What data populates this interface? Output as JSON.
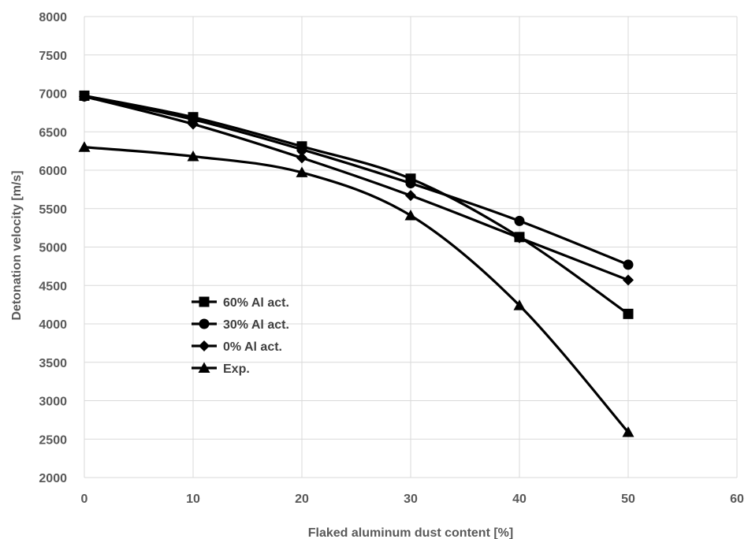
{
  "chart_data": {
    "type": "line",
    "title": "",
    "xlabel": "Flaked aluminum dust content [%]",
    "ylabel": "Detonation velocity [m/s]",
    "xlim": [
      0,
      60
    ],
    "ylim": [
      2000,
      8000
    ],
    "xticks": [
      0,
      10,
      20,
      30,
      40,
      50,
      60
    ],
    "yticks": [
      2000,
      2500,
      3000,
      3500,
      4000,
      4500,
      5000,
      5500,
      6000,
      6500,
      7000,
      7500,
      8000
    ],
    "grid": true,
    "smooth": true,
    "legend_position": "left-middle",
    "series": [
      {
        "name": "60% Al act.",
        "marker": "square",
        "color": "#000000",
        "x": [
          0,
          10,
          20,
          30,
          40,
          50
        ],
        "y": [
          6970,
          6690,
          6310,
          5890,
          5130,
          4130
        ]
      },
      {
        "name": "30% Al act.",
        "marker": "circle",
        "color": "#000000",
        "x": [
          0,
          10,
          20,
          30,
          40,
          50
        ],
        "y": [
          6960,
          6660,
          6270,
          5830,
          5340,
          4770
        ]
      },
      {
        "name": "0% Al act.",
        "marker": "diamond",
        "color": "#000000",
        "x": [
          0,
          10,
          20,
          30,
          40,
          50
        ],
        "y": [
          6960,
          6600,
          6160,
          5670,
          5120,
          4570
        ]
      },
      {
        "name": "Exp.",
        "marker": "triangle",
        "color": "#000000",
        "x": [
          0,
          10,
          20,
          30,
          40,
          50
        ],
        "y": [
          6300,
          6180,
          5970,
          5410,
          4240,
          2590
        ]
      }
    ]
  }
}
